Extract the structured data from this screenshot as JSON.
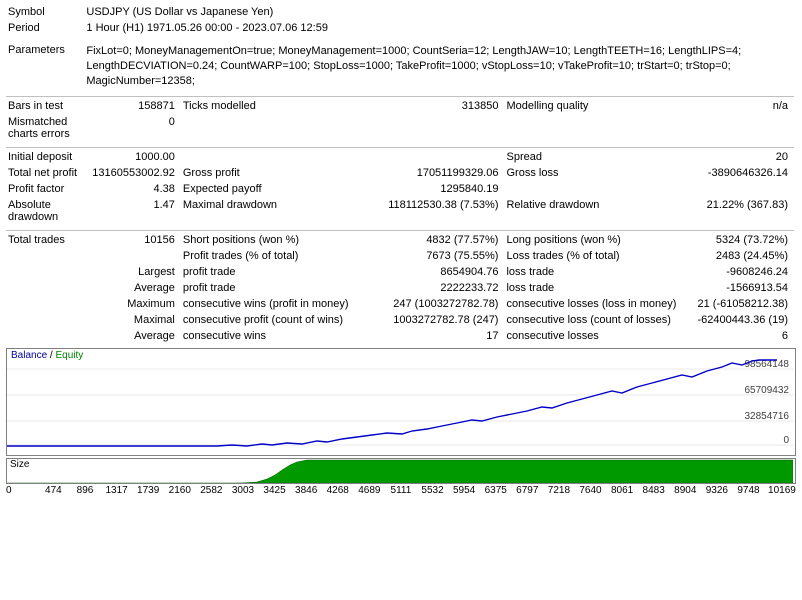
{
  "header": {
    "symbol_label": "Symbol",
    "symbol_value": "USDJPY (US Dollar vs Japanese Yen)",
    "period_label": "Period",
    "period_value": "1 Hour (H1) 1971.05.26 00:00 - 2023.07.06 12:59",
    "params_label": "Parameters",
    "params_value": "FixLot=0; MoneyManagementOn=true; MoneyManagement=1000; CountSeria=12; LengthJAW=10; LengthTEETH=16; LengthLIPS=4; LengthDECVIATION=0.24; CountWARP=100; StopLoss=1000; TakeProfit=1000; vStopLoss=10; vTakeProfit=10; trStart=0; trStop=0; MagicNumber=12358;"
  },
  "rows": {
    "bars_label": "Bars in test",
    "bars_value": "158871",
    "ticks_label": "Ticks modelled",
    "ticks_value": "313850",
    "modq_label": "Modelling quality",
    "modq_value": "n/a",
    "mism_label": "Mismatched charts errors",
    "mism_value": "0",
    "initdep_label": "Initial deposit",
    "initdep_value": "1000.00",
    "spread_label": "Spread",
    "spread_value": "20",
    "tnp_label": "Total net profit",
    "tnp_value": "13160553002.92",
    "gp_label": "Gross profit",
    "gp_value": "17051199329.06",
    "gl_label": "Gross loss",
    "gl_value": "-3890646326.14",
    "pf_label": "Profit factor",
    "pf_value": "4.38",
    "ep_label": "Expected payoff",
    "ep_value": "1295840.19",
    "addq_label": "Absolute drawdown",
    "addq_value": "1.47",
    "mdd_label": "Maximal drawdown",
    "mdd_value": "118112530.38 (7.53%)",
    "rdd_label": "Relative drawdown",
    "rdd_value": "21.22% (367.83)",
    "tt_label": "Total trades",
    "tt_value": "10156",
    "sp_label": "Short positions (won %)",
    "sp_value": "4832 (77.57%)",
    "lp_label": "Long positions (won %)",
    "lp_value": "5324 (73.72%)",
    "pt_label": "Profit trades (% of total)",
    "pt_value": "7673 (75.55%)",
    "lt_label": "Loss trades (% of total)",
    "lt_value": "2483 (24.45%)",
    "largest_lbl": "Largest",
    "lpt_label": "profit trade",
    "lpt_value": "8654904.76",
    "llt_label": "loss trade",
    "llt_value": "-9608246.24",
    "average_lbl": "Average",
    "apt_label": "profit trade",
    "apt_value": "2222233.72",
    "alt_label": "loss trade",
    "alt_value": "-1566913.54",
    "maximum_lbl": "Maximum",
    "mcw_label": "consecutive wins (profit in money)",
    "mcw_value": "247 (1003272782.78)",
    "mcl_label": "consecutive losses (loss in money)",
    "mcl_value": "21 (-61058212.38)",
    "maximal_lbl": "Maximal",
    "mcp_label": "consecutive profit (count of wins)",
    "mcp_value": "1003272782.78 (247)",
    "mcls_label": "consecutive loss (count of losses)",
    "mcls_value": "-62400443.36 (19)",
    "avg2_lbl": "Average",
    "acw_label": "consecutive wins",
    "acw_value": "17",
    "acl_label": "consecutive losses",
    "acl_value": "6"
  },
  "chart": {
    "title_balance": "Balance",
    "title_sep": " / ",
    "title_equity": "Equity",
    "y_labels": [
      "98564148",
      "65709432",
      "32854716",
      "0"
    ],
    "y_positions": [
      20,
      46,
      72,
      96
    ],
    "line_color": "#0000c8",
    "grid_color": "#e8e8e8",
    "points": [
      [
        0,
        97
      ],
      [
        30,
        97
      ],
      [
        60,
        97
      ],
      [
        90,
        97
      ],
      [
        120,
        97
      ],
      [
        150,
        97
      ],
      [
        180,
        97
      ],
      [
        210,
        97
      ],
      [
        225,
        96
      ],
      [
        240,
        97
      ],
      [
        255,
        95
      ],
      [
        265,
        96
      ],
      [
        280,
        94
      ],
      [
        295,
        95
      ],
      [
        310,
        92
      ],
      [
        320,
        93
      ],
      [
        335,
        90
      ],
      [
        350,
        88
      ],
      [
        365,
        86
      ],
      [
        380,
        84
      ],
      [
        395,
        85
      ],
      [
        405,
        82
      ],
      [
        420,
        80
      ],
      [
        435,
        77
      ],
      [
        450,
        74
      ],
      [
        465,
        71
      ],
      [
        475,
        72
      ],
      [
        490,
        68
      ],
      [
        505,
        65
      ],
      [
        520,
        62
      ],
      [
        535,
        58
      ],
      [
        545,
        59
      ],
      [
        560,
        54
      ],
      [
        575,
        50
      ],
      [
        590,
        46
      ],
      [
        605,
        42
      ],
      [
        615,
        44
      ],
      [
        630,
        38
      ],
      [
        645,
        34
      ],
      [
        660,
        30
      ],
      [
        675,
        26
      ],
      [
        685,
        28
      ],
      [
        700,
        22
      ],
      [
        715,
        18
      ],
      [
        725,
        14
      ],
      [
        735,
        16
      ],
      [
        745,
        12
      ],
      [
        752,
        11
      ],
      [
        760,
        11
      ],
      [
        770,
        11
      ]
    ]
  },
  "size_chart": {
    "title": "Size",
    "fill_color": "#009900",
    "border_color": "#006000",
    "points": [
      [
        0,
        25
      ],
      [
        60,
        25
      ],
      [
        120,
        25
      ],
      [
        175,
        25
      ],
      [
        215,
        25
      ],
      [
        235,
        24
      ],
      [
        250,
        23
      ],
      [
        260,
        20
      ],
      [
        268,
        16
      ],
      [
        275,
        11
      ],
      [
        283,
        6
      ],
      [
        290,
        3
      ],
      [
        300,
        1
      ],
      [
        320,
        1
      ],
      [
        770,
        1
      ]
    ]
  },
  "xaxis": [
    "0",
    "474",
    "896",
    "1317",
    "1739",
    "2160",
    "2582",
    "3003",
    "3425",
    "3846",
    "4268",
    "4689",
    "5111",
    "5532",
    "5954",
    "6375",
    "6797",
    "7218",
    "7640",
    "8061",
    "8483",
    "8904",
    "9326",
    "9748",
    "10169"
  ]
}
